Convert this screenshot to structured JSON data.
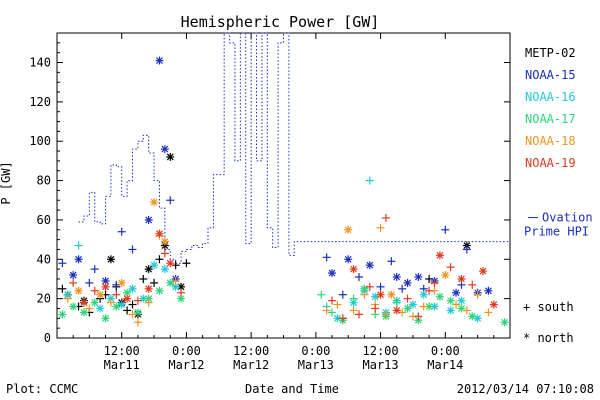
{
  "chart_data": {
    "type": "scatter",
    "title": "Hemispheric Power [GW]",
    "ylabel": "P [GW]",
    "xlabel": "Date and Time",
    "ylim": [
      0,
      155
    ],
    "xlim_hours": [
      0,
      84
    ],
    "y_ticks": [
      0,
      20,
      40,
      60,
      80,
      100,
      120,
      140
    ],
    "x_ticks": [
      {
        "pos": 12,
        "time": "12:00",
        "date": "Mar11"
      },
      {
        "pos": 24,
        "time": "0:00",
        "date": "Mar12"
      },
      {
        "pos": 36,
        "time": "12:00",
        "date": "Mar12"
      },
      {
        "pos": 48,
        "time": "0:00",
        "date": "Mar13"
      },
      {
        "pos": 60,
        "time": "12:00",
        "date": "Mar13"
      },
      {
        "pos": 72,
        "time": "0:00",
        "date": "Mar14"
      }
    ],
    "legend": [
      {
        "name": "METP-02",
        "color": "#000000"
      },
      {
        "name": "NOAA-15",
        "color": "#1a2fc0"
      },
      {
        "name": "NOAA-16",
        "color": "#22c8d8"
      },
      {
        "name": "NOAA-17",
        "color": "#2ed47a"
      },
      {
        "name": "NOAA-18",
        "color": "#f0941e"
      },
      {
        "name": "NOAA-19",
        "color": "#e03a1e"
      }
    ],
    "ovation_label": "Ovation Prime HPI",
    "symbols": {
      "south": "+ south",
      "north": "* north"
    },
    "ovation": [
      [
        4,
        59
      ],
      [
        5,
        62
      ],
      [
        6,
        74
      ],
      [
        7,
        59
      ],
      [
        8,
        58
      ],
      [
        9,
        72
      ],
      [
        10,
        88
      ],
      [
        11,
        87
      ],
      [
        12,
        72
      ],
      [
        13,
        80
      ],
      [
        14,
        96
      ],
      [
        15,
        100
      ],
      [
        16,
        103
      ],
      [
        17,
        94
      ],
      [
        18,
        80
      ],
      [
        19,
        66
      ],
      [
        20,
        45
      ],
      [
        21,
        40
      ],
      [
        22,
        38
      ],
      [
        23,
        44
      ],
      [
        24,
        45
      ],
      [
        25,
        47
      ],
      [
        26,
        46
      ],
      [
        27,
        48
      ],
      [
        28,
        56
      ],
      [
        29,
        83
      ],
      [
        30,
        83
      ],
      [
        31,
        155
      ],
      [
        32,
        150
      ],
      [
        33,
        90
      ],
      [
        34,
        155
      ],
      [
        35,
        48
      ],
      [
        36,
        155
      ],
      [
        37,
        90
      ],
      [
        38,
        155
      ],
      [
        39,
        56
      ],
      [
        40,
        46
      ],
      [
        41,
        150
      ],
      [
        42,
        155
      ],
      [
        43,
        42
      ],
      [
        44,
        49
      ],
      [
        84,
        49
      ]
    ],
    "series": [
      {
        "name": "METP-02",
        "points": [
          [
            1,
            25,
            "s"
          ],
          [
            2,
            22,
            "n"
          ],
          [
            4,
            16,
            "s"
          ],
          [
            5,
            19,
            "n"
          ],
          [
            6,
            13,
            "s"
          ],
          [
            8,
            20,
            "s"
          ],
          [
            9,
            22,
            "s"
          ],
          [
            10,
            40,
            "n"
          ],
          [
            11,
            26,
            "s"
          ],
          [
            12,
            18,
            "n"
          ],
          [
            13,
            14,
            "s"
          ],
          [
            14,
            17,
            "s"
          ],
          [
            15,
            12,
            "n"
          ],
          [
            16,
            30,
            "s"
          ],
          [
            17,
            35,
            "n"
          ],
          [
            18,
            28,
            "s"
          ],
          [
            19,
            40,
            "s"
          ],
          [
            20,
            47,
            "n"
          ],
          [
            21,
            92,
            "n"
          ],
          [
            22,
            37,
            "s"
          ],
          [
            23,
            26,
            "n"
          ],
          [
            24,
            38,
            "s"
          ],
          [
            69,
            30,
            "s"
          ],
          [
            76,
            47,
            "n"
          ]
        ]
      },
      {
        "name": "NOAA-15",
        "points": [
          [
            1,
            38,
            "s"
          ],
          [
            3,
            32,
            "n"
          ],
          [
            4,
            40,
            "n"
          ],
          [
            6,
            28,
            "s"
          ],
          [
            7,
            35,
            "s"
          ],
          [
            9,
            29,
            "n"
          ],
          [
            11,
            27,
            "s"
          ],
          [
            12,
            54,
            "s"
          ],
          [
            14,
            45,
            "s"
          ],
          [
            17,
            60,
            "n"
          ],
          [
            19,
            141,
            "n"
          ],
          [
            20,
            96,
            "n"
          ],
          [
            21,
            70,
            "s"
          ],
          [
            22,
            30,
            "n"
          ],
          [
            50,
            41,
            "s"
          ],
          [
            51,
            33,
            "n"
          ],
          [
            53,
            22,
            "s"
          ],
          [
            54,
            40,
            "n"
          ],
          [
            56,
            31,
            "s"
          ],
          [
            58,
            37,
            "n"
          ],
          [
            60,
            26,
            "s"
          ],
          [
            62,
            39,
            "s"
          ],
          [
            63,
            31,
            "n"
          ],
          [
            64,
            25,
            "s"
          ],
          [
            65,
            28,
            "n"
          ],
          [
            67,
            31,
            "n"
          ],
          [
            68,
            25,
            "s"
          ],
          [
            70,
            29,
            "n"
          ],
          [
            72,
            55,
            "s"
          ],
          [
            74,
            23,
            "n"
          ],
          [
            75,
            27,
            "s"
          ],
          [
            76,
            45,
            "s"
          ],
          [
            78,
            23,
            "n"
          ],
          [
            80,
            24,
            "n"
          ]
        ]
      },
      {
        "name": "NOAA-16",
        "points": [
          [
            2,
            22,
            "n"
          ],
          [
            4,
            47,
            "s"
          ],
          [
            5,
            18,
            "n"
          ],
          [
            8,
            15,
            "n"
          ],
          [
            10,
            20,
            "n"
          ],
          [
            12,
            17,
            "n"
          ],
          [
            14,
            25,
            "n"
          ],
          [
            16,
            20,
            "n"
          ],
          [
            18,
            37,
            "n"
          ],
          [
            20,
            35,
            "n"
          ],
          [
            22,
            26,
            "n"
          ],
          [
            50,
            16,
            "s"
          ],
          [
            52,
            10,
            "n"
          ],
          [
            55,
            18,
            "n"
          ],
          [
            57,
            24,
            "n"
          ],
          [
            58,
            80,
            "s"
          ],
          [
            59,
            21,
            "n"
          ],
          [
            61,
            13,
            "n"
          ],
          [
            63,
            19,
            "n"
          ],
          [
            66,
            17,
            "n"
          ],
          [
            68,
            22,
            "n"
          ],
          [
            70,
            16,
            "n"
          ],
          [
            73,
            14,
            "n"
          ],
          [
            75,
            19,
            "n"
          ],
          [
            78,
            10,
            "n"
          ]
        ]
      },
      {
        "name": "NOAA-17",
        "points": [
          [
            1,
            12,
            "n"
          ],
          [
            3,
            16,
            "n"
          ],
          [
            5,
            13,
            "n"
          ],
          [
            7,
            18,
            "n"
          ],
          [
            9,
            10,
            "n"
          ],
          [
            11,
            16,
            "n"
          ],
          [
            13,
            23,
            "n"
          ],
          [
            15,
            13,
            "n"
          ],
          [
            17,
            20,
            "n"
          ],
          [
            19,
            24,
            "n"
          ],
          [
            21,
            28,
            "n"
          ],
          [
            23,
            20,
            "n"
          ],
          [
            49,
            22,
            "s"
          ],
          [
            51,
            13,
            "s"
          ],
          [
            53,
            9,
            "n"
          ],
          [
            55,
            20,
            "s"
          ],
          [
            57,
            25,
            "n"
          ],
          [
            59,
            12,
            "s"
          ],
          [
            61,
            11,
            "n"
          ],
          [
            63,
            18,
            "s"
          ],
          [
            65,
            15,
            "n"
          ],
          [
            67,
            9,
            "n"
          ],
          [
            69,
            16,
            "n"
          ],
          [
            71,
            21,
            "n"
          ],
          [
            73,
            19,
            "n"
          ],
          [
            75,
            15,
            "n"
          ],
          [
            77,
            11,
            "n"
          ],
          [
            83,
            8,
            "n"
          ]
        ]
      },
      {
        "name": "NOAA-18",
        "points": [
          [
            2,
            20,
            "s"
          ],
          [
            4,
            24,
            "n"
          ],
          [
            6,
            15,
            "s"
          ],
          [
            8,
            22,
            "n"
          ],
          [
            10,
            18,
            "s"
          ],
          [
            12,
            28,
            "n"
          ],
          [
            14,
            12,
            "s"
          ],
          [
            15,
            8,
            "s"
          ],
          [
            17,
            18,
            "s"
          ],
          [
            18,
            69,
            "n"
          ],
          [
            19,
            52,
            "s"
          ],
          [
            20,
            49,
            "n"
          ],
          [
            22,
            29,
            "s"
          ],
          [
            50,
            14,
            "s"
          ],
          [
            52,
            17,
            "s"
          ],
          [
            54,
            55,
            "n"
          ],
          [
            55,
            14,
            "s"
          ],
          [
            57,
            22,
            "s"
          ],
          [
            59,
            17,
            "s"
          ],
          [
            60,
            56,
            "s"
          ],
          [
            61,
            12,
            "s"
          ],
          [
            62,
            22,
            "n"
          ],
          [
            64,
            13,
            "s"
          ],
          [
            66,
            11,
            "s"
          ],
          [
            68,
            16,
            "s"
          ],
          [
            70,
            24,
            "s"
          ],
          [
            72,
            32,
            "n"
          ],
          [
            74,
            17,
            "s"
          ],
          [
            76,
            14,
            "s"
          ],
          [
            78,
            22,
            "s"
          ],
          [
            80,
            13,
            "s"
          ]
        ]
      },
      {
        "name": "NOAA-19",
        "points": [
          [
            3,
            28,
            "s"
          ],
          [
            5,
            18,
            "n"
          ],
          [
            7,
            24,
            "s"
          ],
          [
            9,
            26,
            "n"
          ],
          [
            11,
            22,
            "s"
          ],
          [
            13,
            20,
            "n"
          ],
          [
            15,
            19,
            "s"
          ],
          [
            17,
            25,
            "n"
          ],
          [
            19,
            53,
            "n"
          ],
          [
            20,
            43,
            "s"
          ],
          [
            21,
            38,
            "n"
          ],
          [
            23,
            23,
            "s"
          ],
          [
            51,
            19,
            "s"
          ],
          [
            53,
            10,
            "s"
          ],
          [
            55,
            35,
            "n"
          ],
          [
            56,
            12,
            "s"
          ],
          [
            58,
            26,
            "s"
          ],
          [
            59,
            15,
            "s"
          ],
          [
            60,
            22,
            "n"
          ],
          [
            61,
            61,
            "s"
          ],
          [
            63,
            14,
            "n"
          ],
          [
            65,
            20,
            "s"
          ],
          [
            67,
            11,
            "s"
          ],
          [
            69,
            24,
            "s"
          ],
          [
            70,
            28,
            "s"
          ],
          [
            71,
            42,
            "n"
          ],
          [
            73,
            36,
            "s"
          ],
          [
            75,
            30,
            "n"
          ],
          [
            77,
            27,
            "s"
          ],
          [
            79,
            34,
            "n"
          ],
          [
            81,
            17,
            "n"
          ]
        ]
      }
    ]
  },
  "footer": {
    "credit": "Plot: CCMC",
    "timestamp": "2012/03/14 07:10:08"
  }
}
